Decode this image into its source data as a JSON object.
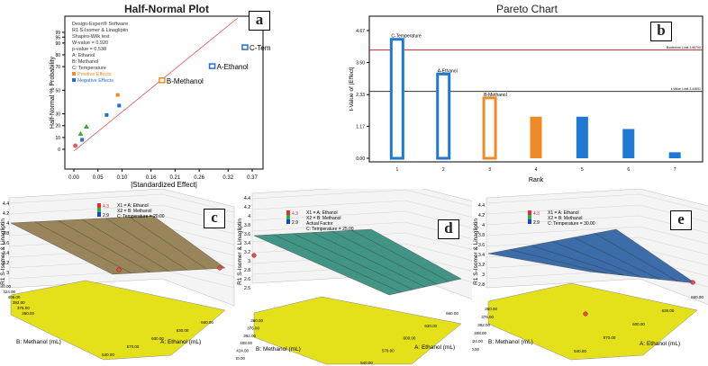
{
  "panel_tags": [
    "a",
    "b",
    "c",
    "d",
    "e"
  ],
  "chart_data": [
    {
      "type": "scatter",
      "title": "Half-Normal Plot",
      "xlabel": "|Standardized Effect|",
      "ylabel": "Half-Normal % Probability",
      "x_ticks": [
        "0.00",
        "0.05",
        "0.10",
        "0.16",
        "0.21",
        "0.26",
        "0.32",
        "0.37"
      ],
      "y_ticks": [
        "0",
        "10",
        "20",
        "30",
        "50",
        "70",
        "80",
        "90",
        "95",
        "99"
      ],
      "info_lines": [
        "Design-Expert® Software",
        "R1 S-Isomer & Linagliptin",
        "Shapiro-Wilk test",
        "W-value = 0.920",
        "p-value = 0.538",
        "A: Ethanol",
        "B: Methanol",
        "C: Temperature"
      ],
      "legend": [
        {
          "label": "Positive Effects",
          "color": "#f08a24"
        },
        {
          "label": "Negative Effects",
          "color": "#1f6fd6"
        }
      ],
      "points": [
        {
          "x": 0.003,
          "y": 3,
          "shape": "circle",
          "color": "#e06060"
        },
        {
          "x": 0.017,
          "y": 8,
          "shape": "square",
          "color": "#1f6fd6"
        },
        {
          "x": 0.014,
          "y": 13,
          "shape": "triangle",
          "color": "#3aa63a"
        },
        {
          "x": 0.026,
          "y": 19,
          "shape": "triangle",
          "color": "#3aa63a"
        },
        {
          "x": 0.068,
          "y": 29,
          "shape": "square",
          "color": "#1f6fd6"
        },
        {
          "x": 0.094,
          "y": 37,
          "shape": "square",
          "color": "#1f6fd6"
        },
        {
          "x": 0.091,
          "y": 46,
          "shape": "square",
          "color": "#f08a24"
        }
      ],
      "labeled_points": [
        {
          "label": "B-Methanol",
          "x": 0.183,
          "y": 58,
          "color": "#f08a24"
        },
        {
          "label": "A-Ethanol",
          "x": 0.287,
          "y": 70,
          "color": "#1f6fd6"
        },
        {
          "label": "C-Temperature",
          "x": 0.355,
          "y": 86,
          "color": "#1f6fd6"
        }
      ]
    },
    {
      "type": "bar",
      "title": "Pareto Chart",
      "xlabel": "Rank",
      "ylabel": "t-Value of |Effect|",
      "categories": [
        "1",
        "2",
        "3",
        "4",
        "5",
        "6",
        "7"
      ],
      "values": [
        4.35,
        3.08,
        2.21,
        1.52,
        1.52,
        1.07,
        0.22
      ],
      "bar_styles": [
        "outline-blue",
        "outline-blue",
        "outline-orange",
        "orange",
        "blue",
        "blue",
        "blue"
      ],
      "bar_labels": [
        "C-Temperature",
        "A-Ethanol",
        "B-Methanol",
        "",
        "",
        "",
        ""
      ],
      "y_ticks": [
        "0.00",
        "1.17",
        "2.33",
        "3.50",
        "4.67"
      ],
      "ylim": [
        0,
        4.67
      ],
      "lines": [
        {
          "label": "Bonferroni Limit 3.95700",
          "value": 3.957,
          "color": "#c82828"
        },
        {
          "label": "t-Value Limit 2.44691",
          "value": 2.44691,
          "color": "#333333"
        }
      ]
    },
    {
      "type": "surface",
      "tag": "c",
      "zlabel": "R1 S-Isomer & Linagliptin",
      "xlabel": "A: Ethanol (mL)",
      "ylabel": "B: Methanol (mL)",
      "z_ticks": [
        "3",
        "3.2",
        "3.4",
        "3.6",
        "3.8",
        "4",
        "4.2",
        "4.4"
      ],
      "x_ticks": [
        "540.00",
        "570.00",
        "600.00",
        "630.00",
        "660.00"
      ],
      "y_ticks": [
        "360.00",
        "376.00",
        "392.00",
        "408.00",
        "424.00",
        "440.00"
      ],
      "legend_values": [
        "4.3",
        "2.9"
      ],
      "info_lines": [
        "X1 = A: Ethanol",
        "X2 = B: Methanol",
        "C: Temperature = 20.00"
      ],
      "surface_color": "#8f7a4a"
    },
    {
      "type": "surface",
      "tag": "d",
      "zlabel": "R1 S-Isomer & Linagliptin",
      "xlabel": "A: Ethanol (mL)",
      "ylabel": "B: Methanol (mL)",
      "z_ticks": [
        "2.5",
        "2.6",
        "2.8",
        "3",
        "3.2",
        "3.4",
        "3.6",
        "3.8",
        "4",
        "4.2",
        "4.4"
      ],
      "x_ticks": [
        "540.00",
        "570.00",
        "600.00",
        "630.00",
        "660.00"
      ],
      "y_ticks": [
        "360.00",
        "376.00",
        "392.00",
        "408.00",
        "424.00",
        "440.00"
      ],
      "legend_values": [
        "4.3",
        "2.9"
      ],
      "info_lines": [
        "X1 = A: Ethanol",
        "X2 = B: Methanol",
        "Actual Factor",
        "C: Temperature = 25.00"
      ],
      "surface_color": "#2f8a7a"
    },
    {
      "type": "surface",
      "tag": "e",
      "zlabel": "R1 S-Isomer & Linagliptin",
      "xlabel": "A: Ethanol (mL)",
      "ylabel": "B: Methanol (mL)",
      "z_ticks": [
        "2.8",
        "3",
        "3.2",
        "3.4",
        "3.6",
        "3.8",
        "4",
        "4.2",
        "4.4"
      ],
      "x_ticks": [
        "540.00",
        "570.00",
        "600.00",
        "630.00",
        "660.00"
      ],
      "y_ticks": [
        "360.00",
        "376.00",
        "392.00",
        "408.00",
        "424.00",
        "440.00"
      ],
      "legend_values": [
        "4.3",
        "2.9"
      ],
      "info_lines": [
        "X1 = A: Ethanol",
        "X2 = B: Methanol",
        "C: Temperature = 30.00"
      ],
      "surface_color": "#2a5fa0"
    }
  ]
}
